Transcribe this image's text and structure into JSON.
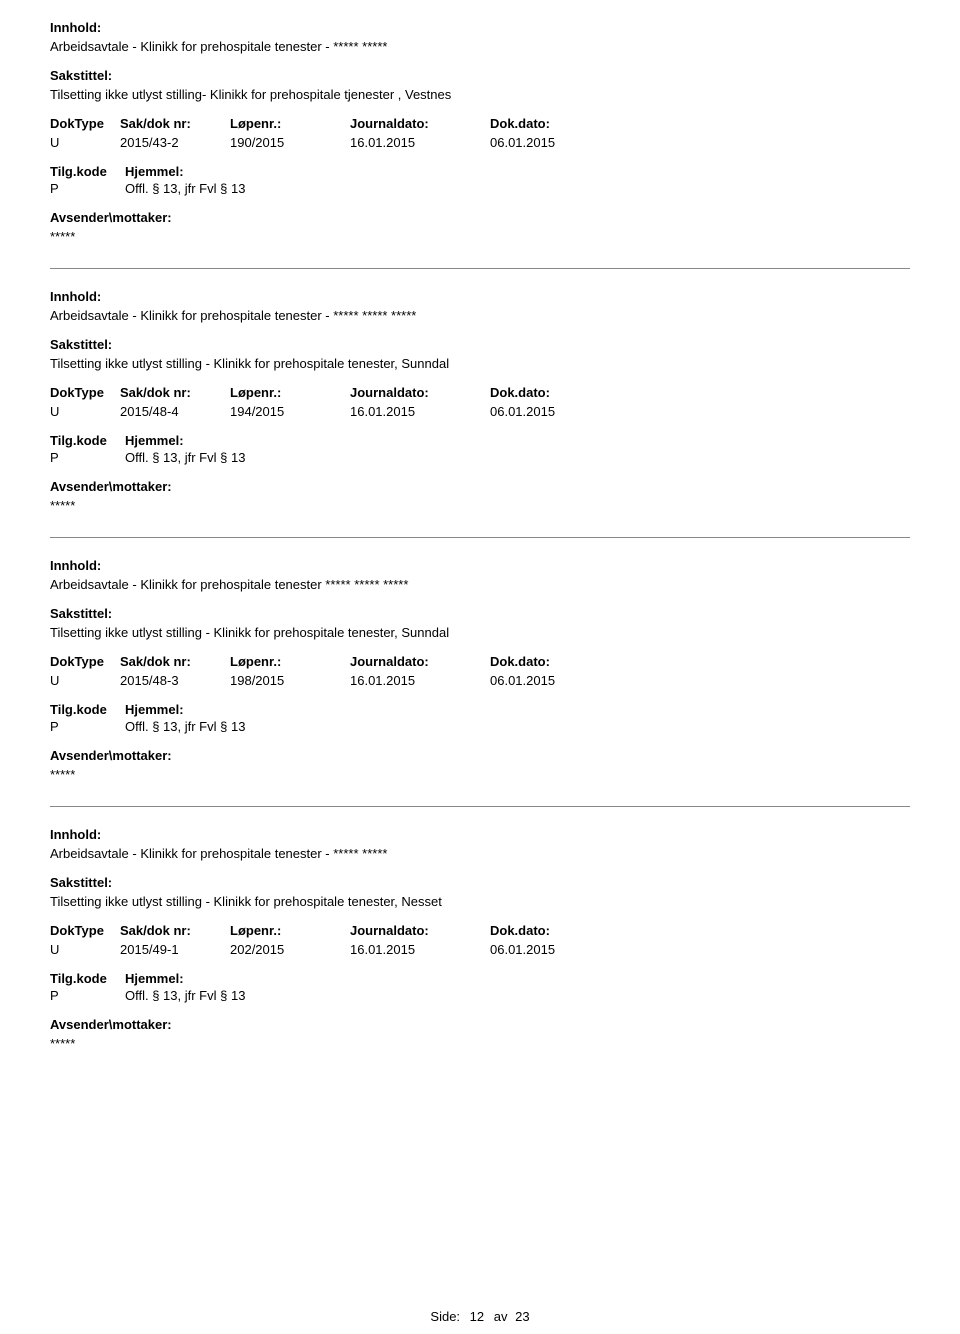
{
  "labels": {
    "innhold": "Innhold:",
    "sakstittel": "Sakstittel:",
    "doktype": "DokType",
    "sakdok": "Sak/dok nr:",
    "lopenr": "Løpenr.:",
    "journaldato": "Journaldato:",
    "dokdato": "Dok.dato:",
    "tilgkode": "Tilg.kode",
    "hjemmel": "Hjemmel:",
    "avsender": "Avsender\\mottaker:"
  },
  "entries": [
    {
      "innhold": "Arbeidsavtale - Klinikk for prehospitale tenester - ***** *****",
      "sakstittel": "Tilsetting ikke utlyst stilling- Klinikk for prehospitale tjenester , Vestnes",
      "doktype": "U",
      "sakdok": "2015/43-2",
      "lopenr": "190/2015",
      "journaldato": "16.01.2015",
      "dokdato": "06.01.2015",
      "tilgkode": "P",
      "hjemmel": "Offl. § 13, jfr Fvl § 13",
      "avsender": "*****"
    },
    {
      "innhold": "Arbeidsavtale - Klinikk for prehospitale tenester - ***** ***** *****",
      "sakstittel": "Tilsetting ikke utlyst stilling - Klinikk for prehospitale tenester, Sunndal",
      "doktype": "U",
      "sakdok": "2015/48-4",
      "lopenr": "194/2015",
      "journaldato": "16.01.2015",
      "dokdato": "06.01.2015",
      "tilgkode": "P",
      "hjemmel": "Offl. § 13, jfr Fvl § 13",
      "avsender": "*****"
    },
    {
      "innhold": "Arbeidsavtale - Klinikk for prehospitale tenester ***** ***** *****",
      "sakstittel": "Tilsetting ikke utlyst stilling - Klinikk for prehospitale tenester, Sunndal",
      "doktype": "U",
      "sakdok": "2015/48-3",
      "lopenr": "198/2015",
      "journaldato": "16.01.2015",
      "dokdato": "06.01.2015",
      "tilgkode": "P",
      "hjemmel": "Offl. § 13, jfr Fvl § 13",
      "avsender": "*****"
    },
    {
      "innhold": "Arbeidsavtale - Klinikk for prehospitale tenester - ***** *****",
      "sakstittel": "Tilsetting ikke utlyst stilling - Klinikk for prehospitale tenester, Nesset",
      "doktype": "U",
      "sakdok": "2015/49-1",
      "lopenr": "202/2015",
      "journaldato": "16.01.2015",
      "dokdato": "06.01.2015",
      "tilgkode": "P",
      "hjemmel": "Offl. § 13, jfr Fvl § 13",
      "avsender": "*****"
    }
  ],
  "footer": {
    "side_label": "Side:",
    "page_current": "12",
    "page_of": "av",
    "page_total": "23"
  }
}
